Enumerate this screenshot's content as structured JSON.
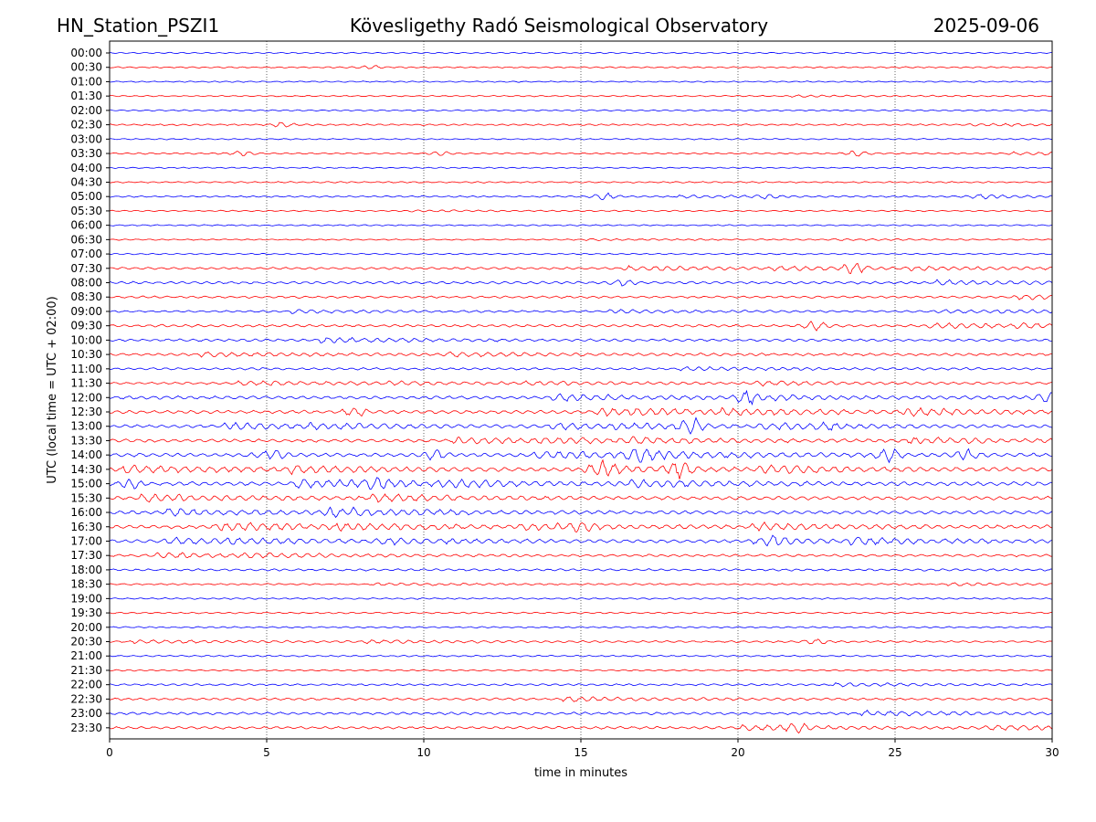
{
  "header": {
    "station": "HN_Station_PSZI1",
    "observatory": "Kövesligethy Radó Seismological Observatory",
    "date": "2025-09-06"
  },
  "chart_data": {
    "type": "line",
    "title": "Kövesligethy Radó Seismological Observatory",
    "xlabel": "time in minutes",
    "ylabel": "UTC (local time = UTC + 02:00)",
    "xlim": [
      0,
      30
    ],
    "xticks": [
      0,
      5,
      10,
      15,
      20,
      25,
      30
    ],
    "vertical_gridlines": [
      5,
      10,
      15,
      20,
      25
    ],
    "grid": "dotted vertical lines at 5-minute intervals",
    "row_labels": [
      "00:00",
      "00:30",
      "01:00",
      "01:30",
      "02:00",
      "02:30",
      "03:00",
      "03:30",
      "04:00",
      "04:30",
      "05:00",
      "05:30",
      "06:00",
      "06:30",
      "07:00",
      "07:30",
      "08:00",
      "08:30",
      "09:00",
      "09:30",
      "10:00",
      "10:30",
      "11:00",
      "11:30",
      "12:00",
      "12:30",
      "13:00",
      "13:30",
      "14:00",
      "14:30",
      "15:00",
      "15:30",
      "16:00",
      "16:30",
      "17:00",
      "17:30",
      "18:00",
      "18:30",
      "19:00",
      "19:30",
      "20:00",
      "20:30",
      "21:00",
      "21:30",
      "22:00",
      "22:30",
      "23:00",
      "23:30"
    ],
    "trace_colors": [
      "#0000ff",
      "#ff0000"
    ],
    "trace_color_order": "alternating, starting with blue at 00:00",
    "activity_levels": [
      0.2,
      0.25,
      0.2,
      0.2,
      0.25,
      0.3,
      0.2,
      0.3,
      0.2,
      0.25,
      0.3,
      0.2,
      0.2,
      0.2,
      0.2,
      0.5,
      0.6,
      0.5,
      0.4,
      0.6,
      0.6,
      0.6,
      0.5,
      0.5,
      0.8,
      0.9,
      0.8,
      0.8,
      1.0,
      1.0,
      1.0,
      0.9,
      0.9,
      0.9,
      0.8,
      0.6,
      0.5,
      0.3,
      0.3,
      0.3,
      0.3,
      0.4,
      0.3,
      0.3,
      0.4,
      0.5,
      0.6,
      0.6
    ],
    "events": [
      {
        "row": "00:30",
        "minute": 8.3,
        "amp": 0.2
      },
      {
        "row": "02:30",
        "minute": 5.5,
        "amp": 0.35
      },
      {
        "row": "03:30",
        "minute": 4.2,
        "amp": 0.25
      },
      {
        "row": "03:30",
        "minute": 10.5,
        "amp": 0.25
      },
      {
        "row": "03:30",
        "minute": 23.8,
        "amp": 0.3
      },
      {
        "row": "05:00",
        "minute": 15.8,
        "amp": 0.45
      },
      {
        "row": "05:00",
        "minute": 21.0,
        "amp": 0.25
      },
      {
        "row": "05:00",
        "minute": 27.8,
        "amp": 0.35
      },
      {
        "row": "07:30",
        "minute": 23.7,
        "amp": 0.6
      },
      {
        "row": "08:00",
        "minute": 16.3,
        "amp": 0.5
      },
      {
        "row": "09:30",
        "minute": 22.5,
        "amp": 0.5
      },
      {
        "row": "12:00",
        "minute": 20.3,
        "amp": 0.6
      },
      {
        "row": "12:00",
        "minute": 29.8,
        "amp": 0.8
      },
      {
        "row": "12:30",
        "minute": 7.8,
        "amp": 0.6
      },
      {
        "row": "13:00",
        "minute": 18.5,
        "amp": 0.9
      },
      {
        "row": "13:00",
        "minute": 22.8,
        "amp": 0.4
      },
      {
        "row": "14:00",
        "minute": 5.2,
        "amp": 0.6
      },
      {
        "row": "14:00",
        "minute": 10.4,
        "amp": 0.6
      },
      {
        "row": "14:00",
        "minute": 16.8,
        "amp": 0.8
      },
      {
        "row": "14:00",
        "minute": 24.8,
        "amp": 0.8
      },
      {
        "row": "14:00",
        "minute": 27.3,
        "amp": 0.6
      },
      {
        "row": "14:30",
        "minute": 15.8,
        "amp": 0.8
      },
      {
        "row": "14:30",
        "minute": 18.1,
        "amp": 1.0
      },
      {
        "row": "15:00",
        "minute": 0.7,
        "amp": 0.6
      },
      {
        "row": "15:00",
        "minute": 8.5,
        "amp": 0.6
      },
      {
        "row": "16:00",
        "minute": 7.2,
        "amp": 0.6
      },
      {
        "row": "16:30",
        "minute": 15.0,
        "amp": 0.5
      },
      {
        "row": "17:00",
        "minute": 21.2,
        "amp": 0.4
      },
      {
        "row": "20:30",
        "minute": 22.5,
        "amp": 0.3
      },
      {
        "row": "23:30",
        "minute": 21.9,
        "amp": 0.5
      }
    ]
  }
}
